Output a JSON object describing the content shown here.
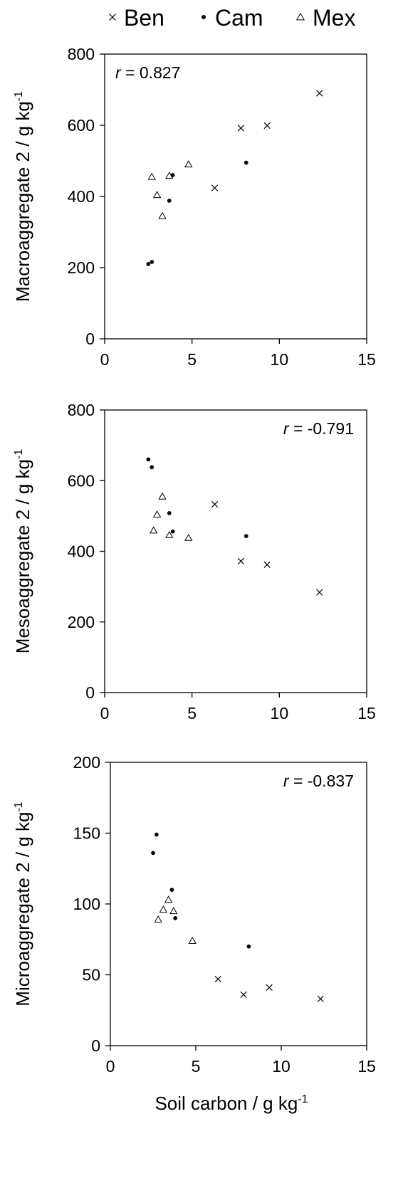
{
  "legend": {
    "placement": "top",
    "entries": [
      {
        "name": "Ben",
        "marker": "x"
      },
      {
        "name": "Cam",
        "marker": "dot"
      },
      {
        "name": "Mex",
        "marker": "triangle"
      }
    ]
  },
  "chart_data": [
    {
      "type": "scatter",
      "ylabel": "Macroaggregate 2 / g kg",
      "ylabel_sup": "-1",
      "xlabel": "",
      "xlim": [
        0,
        15
      ],
      "ylim": [
        0,
        800
      ],
      "xticks": [
        0,
        5,
        10,
        15
      ],
      "yticks": [
        0,
        200,
        400,
        600,
        800
      ],
      "annotation": {
        "prefix": "r",
        "text": " = 0.827",
        "placement": "top-left"
      },
      "grid": false,
      "series": [
        {
          "name": "Ben",
          "marker": "x",
          "points": [
            [
              6.3,
              424
            ],
            [
              7.8,
              592
            ],
            [
              9.3,
              599
            ],
            [
              12.3,
              690
            ]
          ]
        },
        {
          "name": "Cam",
          "marker": "dot",
          "points": [
            [
              2.5,
              210
            ],
            [
              2.7,
              216
            ],
            [
              3.7,
              388
            ],
            [
              3.9,
              460
            ],
            [
              8.1,
              495
            ]
          ]
        },
        {
          "name": "Mex",
          "marker": "triangle",
          "points": [
            [
              2.7,
              455
            ],
            [
              3.0,
              404
            ],
            [
              3.3,
              345
            ],
            [
              3.7,
              458
            ],
            [
              4.8,
              490
            ]
          ]
        }
      ]
    },
    {
      "type": "scatter",
      "ylabel": "Mesoaggregate 2 / g kg",
      "ylabel_sup": "-1",
      "xlabel": "",
      "xlim": [
        0,
        15
      ],
      "ylim": [
        0,
        800
      ],
      "xticks": [
        0,
        5,
        10,
        15
      ],
      "yticks": [
        0,
        200,
        400,
        600,
        800
      ],
      "annotation": {
        "prefix": "r",
        "text": " = -0.791",
        "placement": "top-right"
      },
      "grid": false,
      "series": [
        {
          "name": "Ben",
          "marker": "x",
          "points": [
            [
              6.3,
              533
            ],
            [
              7.8,
              372
            ],
            [
              9.3,
              362
            ],
            [
              12.3,
              284
            ]
          ]
        },
        {
          "name": "Cam",
          "marker": "dot",
          "points": [
            [
              2.5,
              660
            ],
            [
              2.7,
              638
            ],
            [
              3.7,
              508
            ],
            [
              3.9,
              456
            ],
            [
              8.1,
              443
            ]
          ]
        },
        {
          "name": "Mex",
          "marker": "triangle",
          "points": [
            [
              2.8,
              459
            ],
            [
              3.0,
              504
            ],
            [
              3.3,
              555
            ],
            [
              3.7,
              446
            ],
            [
              4.8,
              438
            ]
          ]
        }
      ]
    },
    {
      "type": "scatter",
      "ylabel": "Microaggregate 2 / g kg",
      "ylabel_sup": "-1",
      "xlabel": "Soil carbon / g kg",
      "xlabel_sup": "-1",
      "xlim": [
        0,
        15
      ],
      "ylim": [
        0,
        200
      ],
      "xticks": [
        0,
        5,
        10,
        15
      ],
      "yticks": [
        0,
        50,
        100,
        150,
        200
      ],
      "annotation": {
        "prefix": "r",
        "text": " = -0.837",
        "placement": "top-right"
      },
      "grid": false,
      "series": [
        {
          "name": "Ben",
          "marker": "x",
          "points": [
            [
              6.3,
              47
            ],
            [
              7.8,
              36
            ],
            [
              9.3,
              41
            ],
            [
              12.3,
              33
            ]
          ]
        },
        {
          "name": "Cam",
          "marker": "dot",
          "points": [
            [
              2.5,
              136
            ],
            [
              2.7,
              149
            ],
            [
              3.6,
              110
            ],
            [
              3.8,
              90
            ],
            [
              8.1,
              70
            ]
          ]
        },
        {
          "name": "Mex",
          "marker": "triangle",
          "points": [
            [
              2.8,
              89
            ],
            [
              3.1,
              96
            ],
            [
              3.4,
              103
            ],
            [
              3.7,
              95
            ],
            [
              4.8,
              74
            ]
          ]
        }
      ]
    }
  ]
}
